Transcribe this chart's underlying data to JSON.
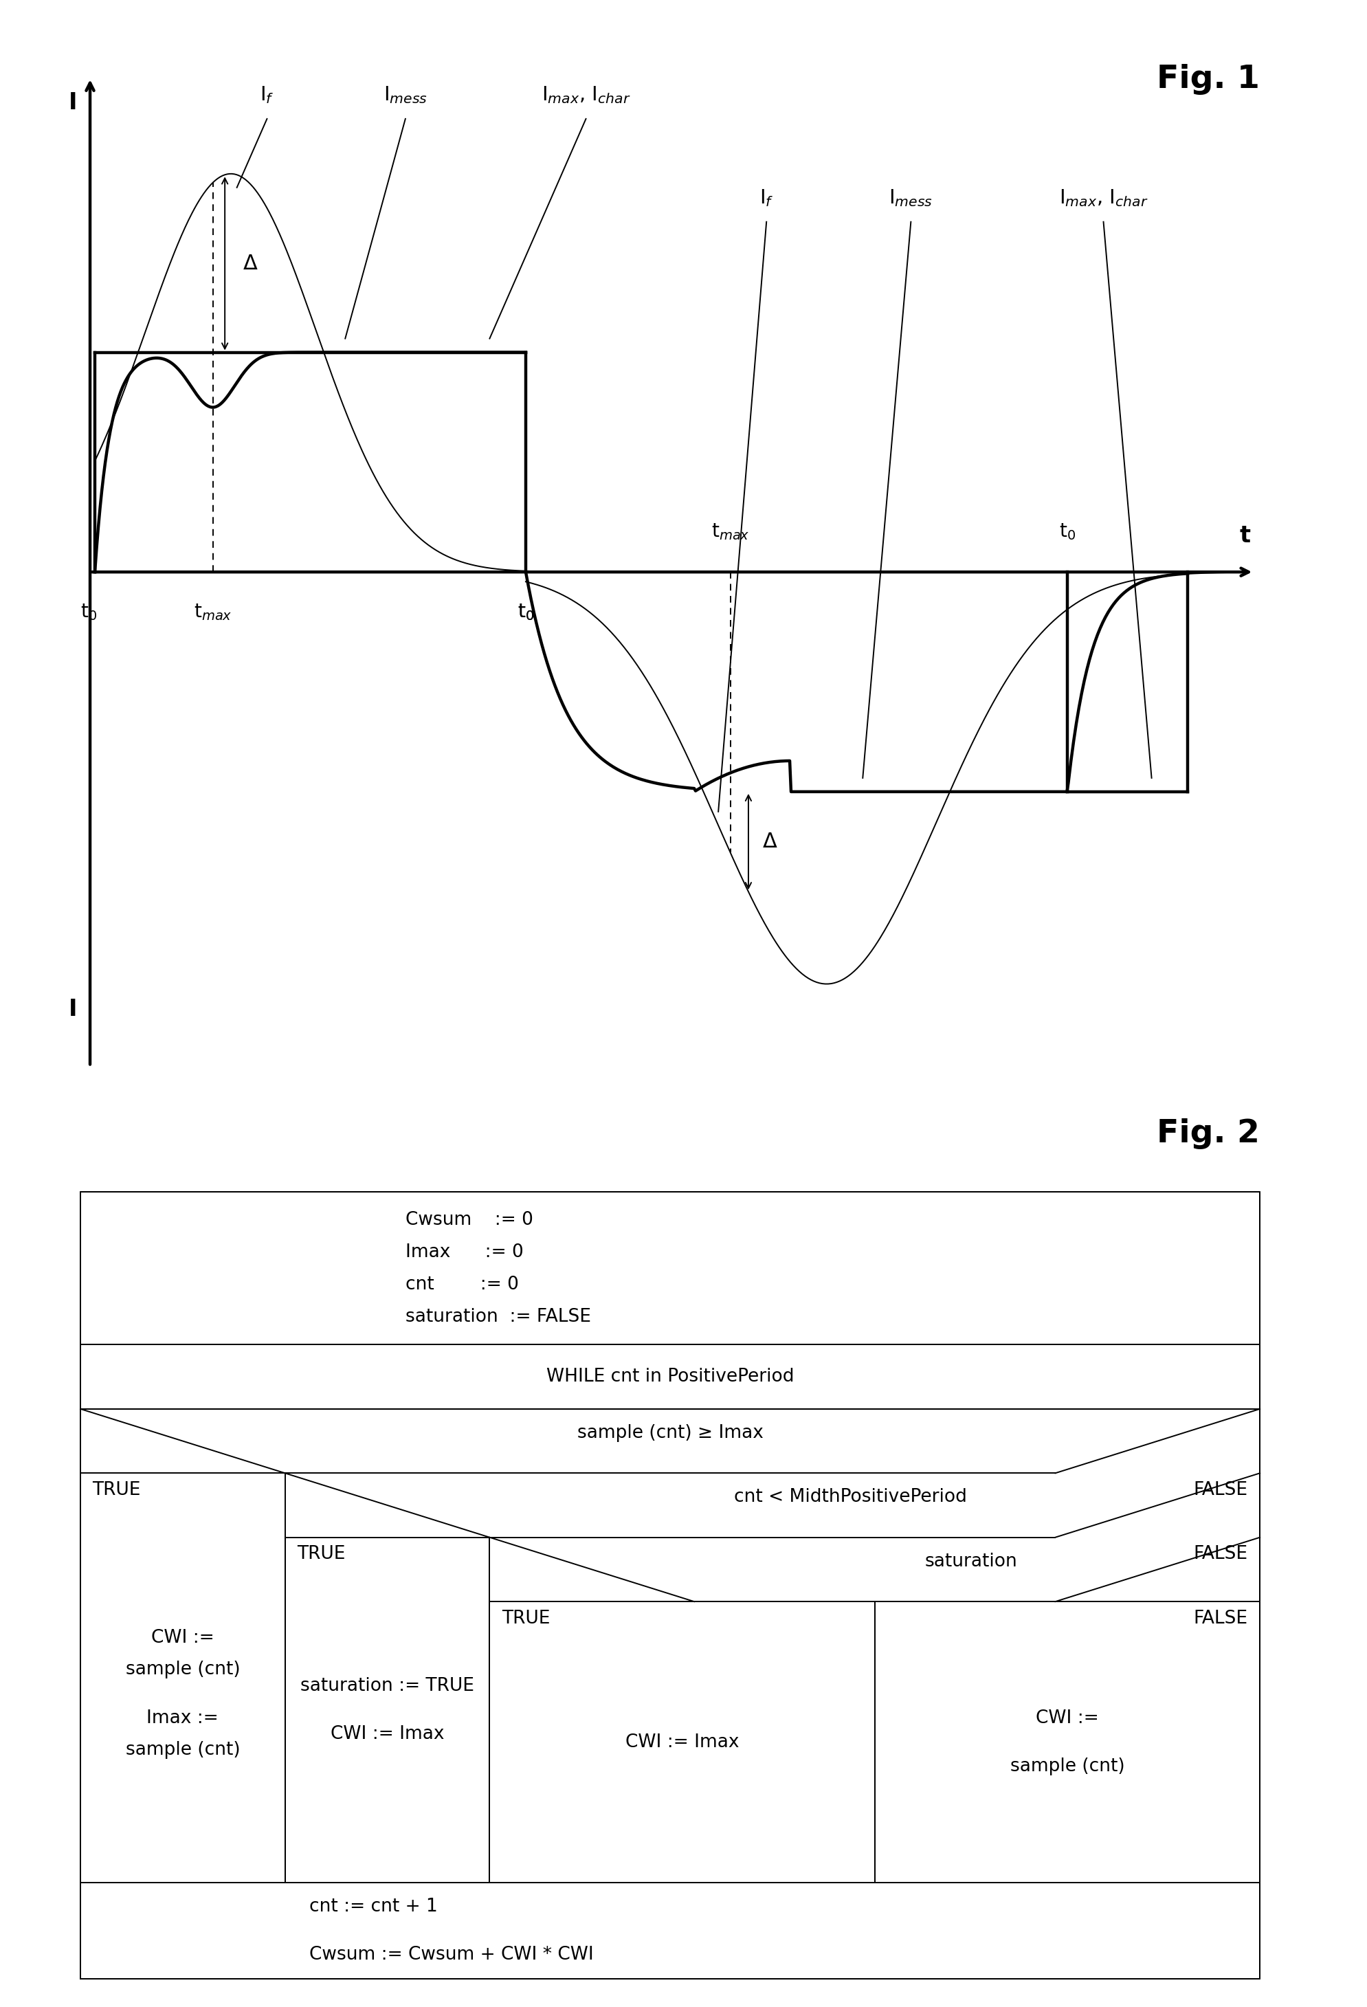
{
  "fig1_title": "Fig. 1",
  "fig2_title": "Fig. 2",
  "background_color": "#ffffff",
  "line_color": "#000000",
  "thick_lw": 3.2,
  "thin_lw": 1.4,
  "dashed_lw": 1.4,
  "annotation_fontsize": 20,
  "label_fontsize": 24,
  "fig_label_fontsize": 34,
  "table_fontsize": 19,
  "flowchart": {
    "init_block": [
      "Cwsum    := 0",
      "Imax      := 0",
      "cnt        := 0",
      "saturation  := FALSE"
    ],
    "while_text": "WHILE cnt in PositivePeriod",
    "condition1": "sample (cnt) ≥ Imax",
    "true1": "TRUE",
    "false1": "FALSE",
    "condition2": "cnt < MidthPositivePeriod",
    "true2": "TRUE",
    "false2": "FALSE",
    "mid_block_line1": "saturation := TRUE",
    "mid_block_line2": "CWI := Imax",
    "condition3": "saturation",
    "true3": "TRUE",
    "false3": "FALSE",
    "block_cwi_imax": "CWI := Imax",
    "block_cwi_sample_line1": "CWI :=",
    "block_cwi_sample_line2": "sample (cnt)",
    "bottom_block_line1": "cnt := cnt + 1",
    "bottom_block_line2": "Cwsum := Cwsum + CWI * CWI"
  }
}
